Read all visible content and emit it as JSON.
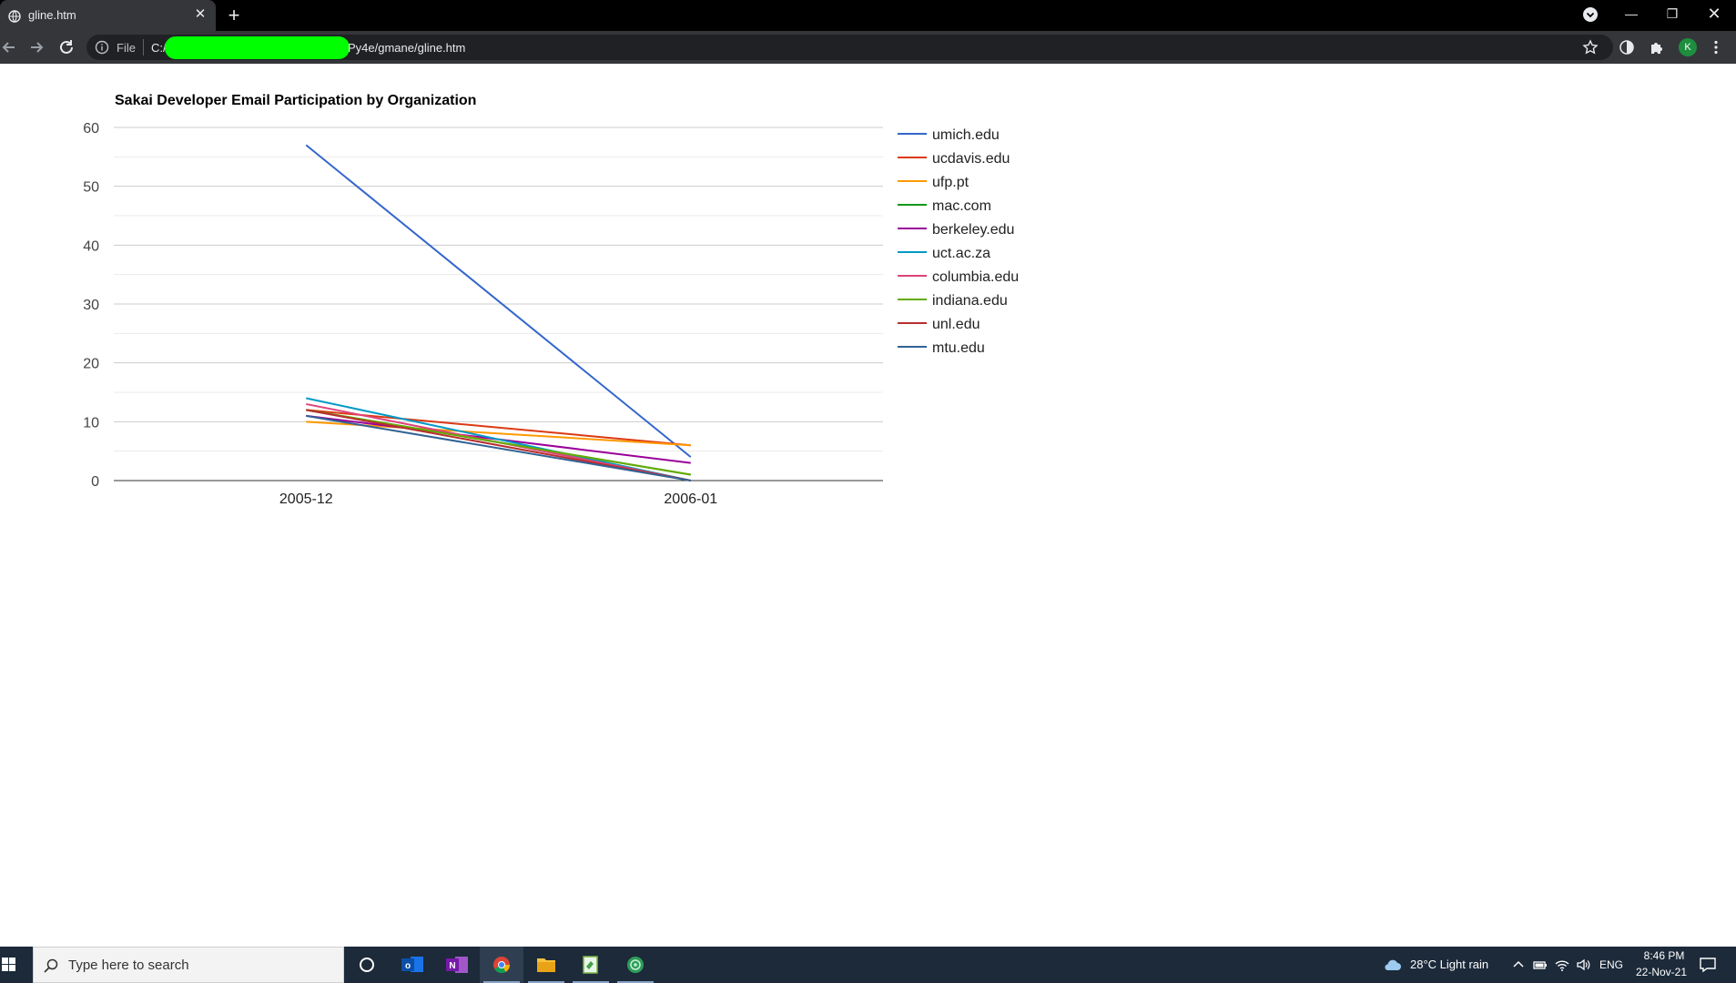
{
  "browser": {
    "tab_title": "gline.htm",
    "url_scheme": "File",
    "url_prefix": "C:/",
    "url_suffix": "Py4e/gmane/gline.htm",
    "profile_initial": "K"
  },
  "colors": {
    "tab_strip": "#000000",
    "toolbar": "#35363a",
    "omnibox": "#202124",
    "redaction": "#00ff00",
    "taskbar": "#1c2a3a"
  },
  "icons": {
    "tab_favicon": "globe-icon",
    "back": "back-arrow-icon",
    "forward": "forward-arrow-icon",
    "reload": "reload-icon",
    "info": "info-icon",
    "bookmark": "star-icon",
    "theme": "contrast-icon",
    "extensions": "puzzle-icon",
    "menu": "kebab-menu-icon"
  },
  "chart_data": {
    "type": "line",
    "title": "Sakai Developer Email Participation by Organization",
    "categories": [
      "2005-12",
      "2006-01"
    ],
    "ylim": [
      0,
      60
    ],
    "yticks": [
      0,
      10,
      20,
      30,
      40,
      50,
      60
    ],
    "grid": true,
    "legend_position": "right",
    "series": [
      {
        "name": "umich.edu",
        "color": "#3366cc",
        "values": [
          57,
          4
        ]
      },
      {
        "name": "ucdavis.edu",
        "color": "#dc3912",
        "values": [
          12,
          6
        ]
      },
      {
        "name": "ufp.pt",
        "color": "#ff9900",
        "values": [
          10,
          6
        ]
      },
      {
        "name": "mac.com",
        "color": "#109618",
        "values": [
          12,
          1
        ]
      },
      {
        "name": "berkeley.edu",
        "color": "#990099",
        "values": [
          11,
          3
        ]
      },
      {
        "name": "uct.ac.za",
        "color": "#0099c6",
        "values": [
          14,
          0
        ]
      },
      {
        "name": "columbia.edu",
        "color": "#dd4477",
        "values": [
          13,
          0
        ]
      },
      {
        "name": "indiana.edu",
        "color": "#66aa00",
        "values": [
          12,
          1
        ]
      },
      {
        "name": "unl.edu",
        "color": "#b82e2e",
        "values": [
          12,
          0
        ]
      },
      {
        "name": "mtu.edu",
        "color": "#316395",
        "values": [
          11,
          0
        ]
      }
    ]
  },
  "taskbar": {
    "search_placeholder": "Type here to search",
    "weather": "28°C  Light rain",
    "language": "ENG",
    "time": "8:46 PM",
    "date": "22-Nov-21",
    "apps": [
      "cortana-icon",
      "outlook-icon",
      "onenote-icon",
      "chrome-icon",
      "file-explorer-icon",
      "notepad-icon",
      "python-icon"
    ]
  }
}
